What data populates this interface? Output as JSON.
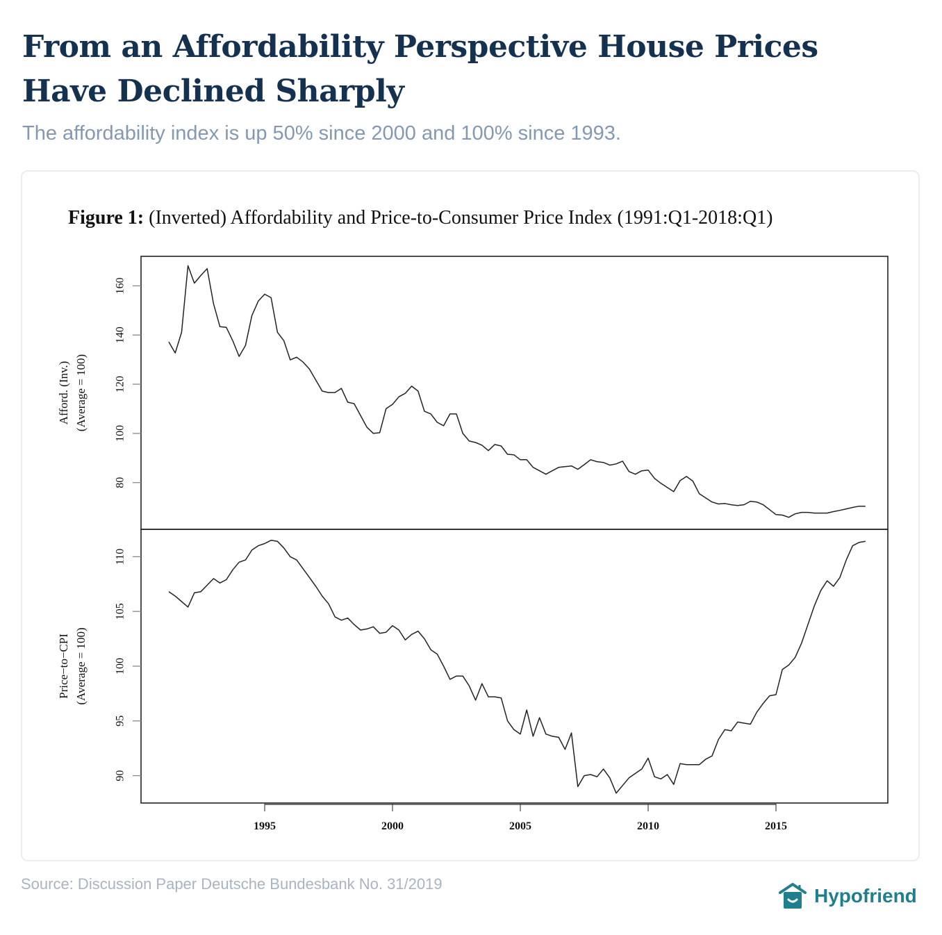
{
  "header": {
    "title": "From an Affordability Perspective House Prices Have Declined Sharply",
    "subtitle": "The affordability index is up 50% since 2000 and 100% since 1993."
  },
  "figure": {
    "label": "Figure 1:",
    "caption": "(Inverted) Affordability and Price-to-Consumer Price Index (1991:Q1-2018:Q1)"
  },
  "footer": {
    "source": "Source: Discussion Paper Deutsche Bundesbank No. 31/2019",
    "brand": "Hypofriend",
    "brand_icon": "house-smile-icon",
    "brand_color": "#1f7f8c"
  },
  "chart_data": [
    {
      "type": "line",
      "title": "(Inverted) Affordability",
      "ylabel": "Afford. (Inv.)",
      "ylabel2": "(Average = 100)",
      "xlabel": "",
      "x_start": 1991.25,
      "x_step": 0.25,
      "xlim": [
        1991,
        2020
      ],
      "ylim": [
        61,
        172
      ],
      "yticks": [
        80,
        100,
        120,
        140,
        160
      ],
      "xticks": [
        1995,
        2000,
        2005,
        2010,
        2015
      ],
      "grid": false,
      "series": [
        {
          "name": "Affordability (Inverted)",
          "color": "#222222",
          "values": [
            137.2,
            132.7,
            141.1,
            168.2,
            161.1,
            164.2,
            167.0,
            152.7,
            143.4,
            143.1,
            137.7,
            131.3,
            135.8,
            147.9,
            153.8,
            156.6,
            155.2,
            141.1,
            137.7,
            129.9,
            131.0,
            129.0,
            126.2,
            121.7,
            117.2,
            116.6,
            116.6,
            118.3,
            112.7,
            112.1,
            107.3,
            102.5,
            100.0,
            100.3,
            110.1,
            111.8,
            114.9,
            116.3,
            119.2,
            117.2,
            109.0,
            107.9,
            104.5,
            103.1,
            107.9,
            107.9,
            100.0,
            96.9,
            96.3,
            95.2,
            93.0,
            95.5,
            94.9,
            91.5,
            91.3,
            89.3,
            89.3,
            86.2,
            84.8,
            83.4,
            84.8,
            86.2,
            86.5,
            86.8,
            85.4,
            87.3,
            89.3,
            88.5,
            88.2,
            87.1,
            87.6,
            88.7,
            84.5,
            83.4,
            84.8,
            85.1,
            81.7,
            79.7,
            78.0,
            76.3,
            80.8,
            82.5,
            80.6,
            75.5,
            73.8,
            72.1,
            71.3,
            71.5,
            71.0,
            70.7,
            71.0,
            72.4,
            72.1,
            71.0,
            69.0,
            67.0,
            66.8,
            65.9,
            67.3,
            67.9,
            67.9,
            67.6,
            67.6,
            67.6,
            68.2,
            68.7,
            69.3,
            69.9,
            70.4,
            70.4
          ]
        }
      ]
    },
    {
      "type": "line",
      "title": "Price-to-CPI",
      "ylabel": "Price−to−CPI",
      "ylabel2": "(Average = 100)",
      "xlabel": "",
      "x_start": 1991.25,
      "x_step": 0.25,
      "xlim": [
        1991,
        2020
      ],
      "ylim": [
        87.5,
        112.5
      ],
      "yticks": [
        90,
        95,
        100,
        105,
        110
      ],
      "xticks": [
        1995,
        2000,
        2005,
        2010,
        2015
      ],
      "grid": false,
      "series": [
        {
          "name": "Price-to-CPI",
          "color": "#222222",
          "values": [
            106.8,
            106.4,
            105.9,
            105.4,
            106.7,
            106.8,
            107.4,
            108.0,
            107.6,
            107.9,
            108.8,
            109.5,
            109.7,
            110.6,
            111.0,
            111.2,
            111.5,
            111.4,
            110.8,
            110.0,
            109.7,
            108.9,
            108.1,
            107.3,
            106.4,
            105.7,
            104.5,
            104.2,
            104.4,
            103.8,
            103.3,
            103.4,
            103.6,
            103.0,
            103.1,
            103.7,
            103.3,
            102.4,
            102.9,
            103.2,
            102.5,
            101.5,
            101.1,
            100.0,
            98.8,
            99.1,
            99.1,
            98.2,
            96.9,
            98.4,
            97.2,
            97.2,
            97.1,
            95.0,
            94.2,
            93.8,
            96.0,
            93.6,
            95.3,
            93.8,
            93.6,
            93.5,
            92.4,
            93.9,
            89.0,
            90.0,
            90.1,
            89.9,
            90.6,
            89.8,
            88.4,
            89.1,
            89.8,
            90.2,
            90.6,
            91.6,
            89.9,
            89.7,
            90.1,
            89.2,
            91.1,
            91.0,
            91.0,
            91.0,
            91.5,
            91.8,
            93.3,
            94.2,
            94.1,
            94.9,
            94.8,
            94.7,
            95.8,
            96.6,
            97.3,
            97.4,
            99.7,
            100.1,
            100.8,
            102.1,
            103.8,
            105.5,
            106.9,
            107.8,
            107.3,
            108.1,
            109.7,
            111.0,
            111.3,
            111.4
          ]
        }
      ]
    }
  ]
}
